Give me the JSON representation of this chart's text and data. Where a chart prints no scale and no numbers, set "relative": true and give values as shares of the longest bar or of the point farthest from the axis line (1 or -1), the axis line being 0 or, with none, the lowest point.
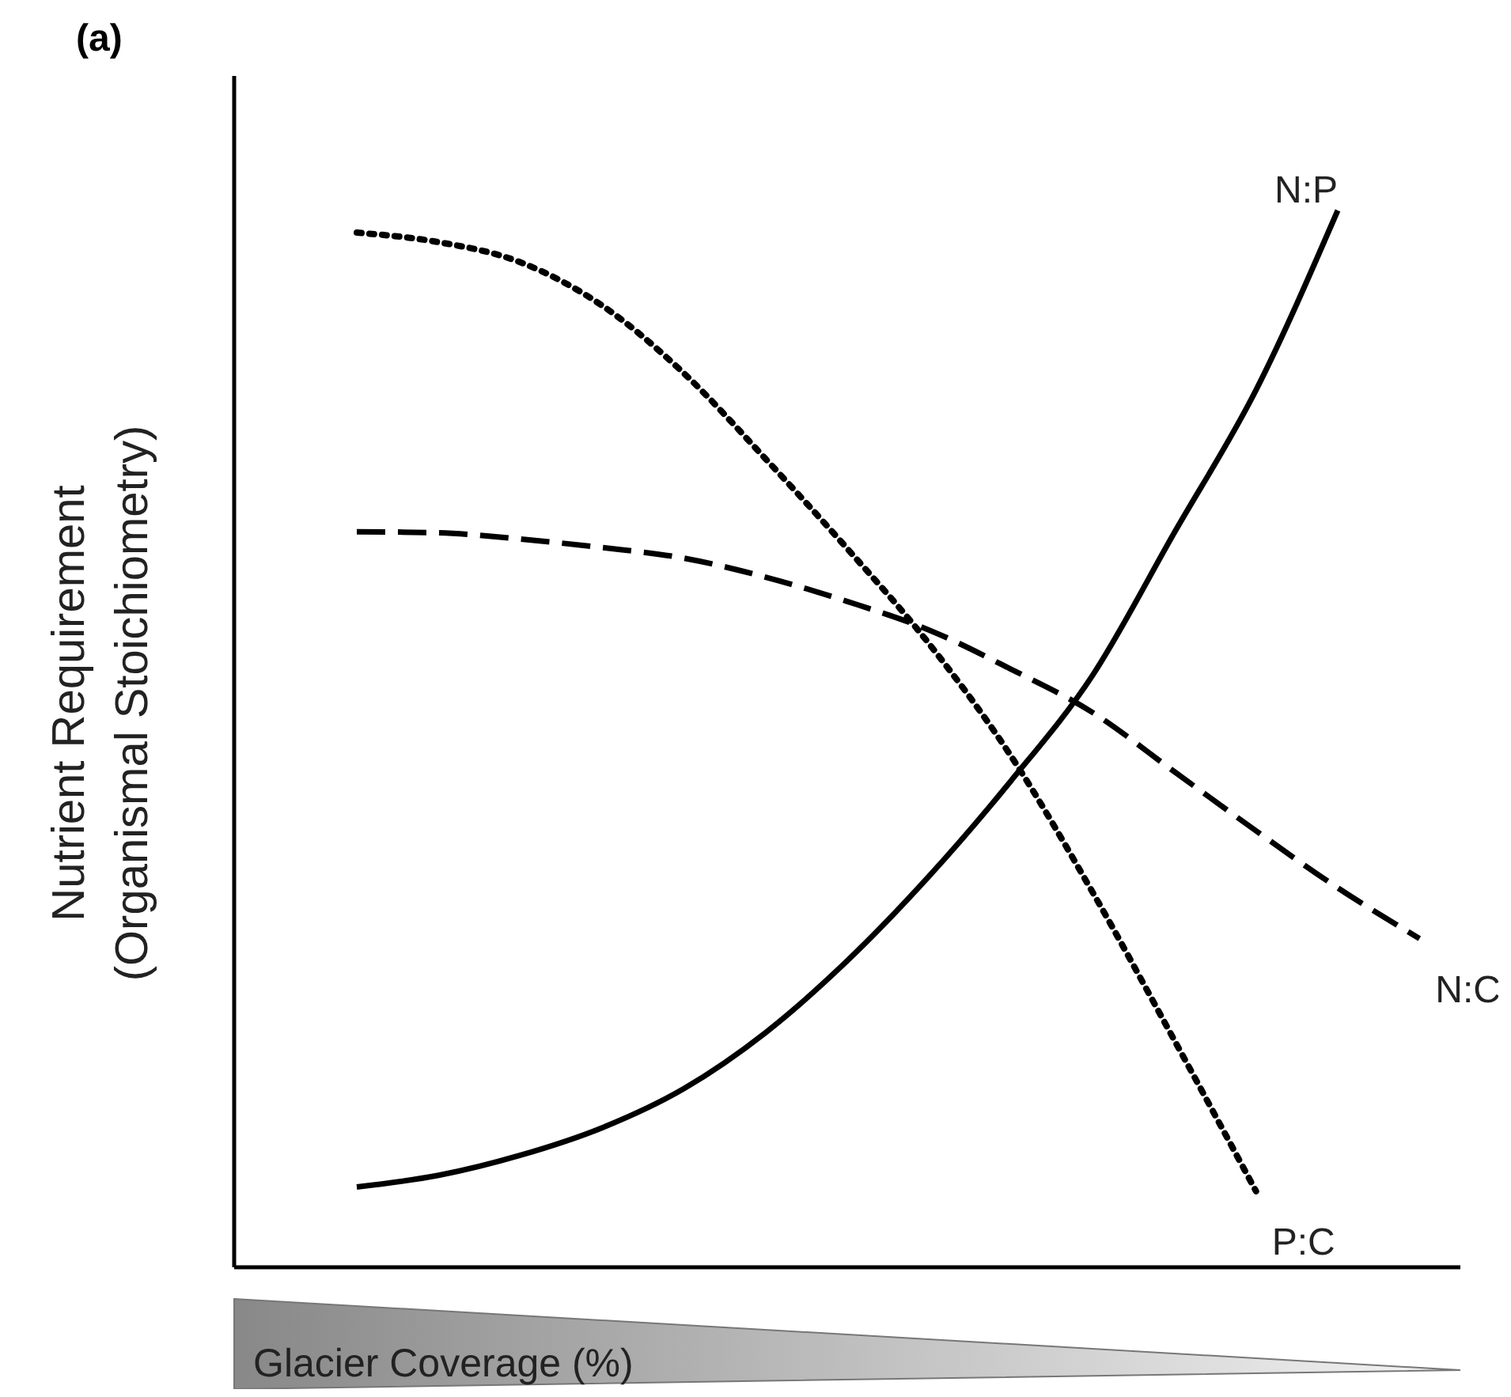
{
  "chart_data": {
    "type": "line",
    "relative": true,
    "annotations": [
      "(a)"
    ],
    "xlabel": "Glacier Coverage (%)",
    "ylabel": "Nutrient Requirement\n(Organismal Stoichiometry)",
    "categories": [
      null,
      null,
      null,
      null,
      null,
      null,
      null,
      null,
      null,
      null,
      null,
      null,
      null,
      null,
      null
    ],
    "marker": "none",
    "grid": false,
    "series": [
      {
        "name": "N:P",
        "color": "#000000",
        "line_style": "solid",
        "values": [
          null,
          0.076,
          0.087,
          0.106,
          0.132,
          0.169,
          0.222,
          0.29,
          0.37,
          0.46,
          0.56,
          0.695,
          0.83,
          1.0,
          null
        ]
      },
      {
        "name": "N:C",
        "color": "#000000",
        "line_style": "dashed",
        "values": [
          null,
          0.696,
          0.695,
          0.689,
          0.681,
          0.671,
          0.653,
          0.63,
          0.603,
          0.566,
          0.525,
          0.469,
          0.413,
          0.359,
          0.311
        ]
      },
      {
        "name": "P:C",
        "color": "#000000",
        "line_style": "dotted",
        "values": [
          null,
          0.979,
          0.97,
          0.951,
          0.91,
          0.846,
          0.765,
          0.68,
          0.59,
          0.484,
          0.355,
          0.215,
          0.072,
          null,
          null
        ]
      }
    ]
  }
}
